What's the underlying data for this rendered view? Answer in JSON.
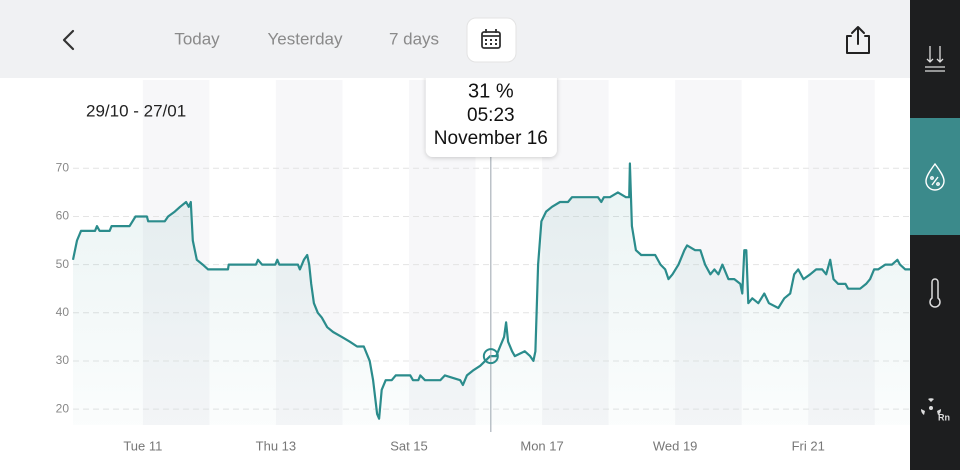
{
  "header": {
    "tabs": [
      "Today",
      "Yesterday",
      "7 days"
    ]
  },
  "range_label": "29/10 - 27/01",
  "sidebar": {
    "radon_label": "Rn"
  },
  "chart_data": {
    "type": "line",
    "color": "#2b8c8c",
    "grid": true,
    "xlim": [
      9.95,
      22.53
    ],
    "xticks": [
      {
        "value": 11,
        "label": "Tue 11"
      },
      {
        "value": 13,
        "label": "Thu 13"
      },
      {
        "value": 15,
        "label": "Sat 15"
      },
      {
        "value": 17,
        "label": "Mon 17"
      },
      {
        "value": 19,
        "label": "Wed 19"
      },
      {
        "value": 21,
        "label": "Fri 21"
      }
    ],
    "ylim": [
      16.7,
      73.8
    ],
    "yticks": [
      20,
      30,
      40,
      50,
      60,
      70
    ],
    "x": [
      9.95,
      10.01,
      10.07,
      10.28,
      10.31,
      10.35,
      10.5,
      10.53,
      10.8,
      10.89,
      11.06,
      11.08,
      11.33,
      11.38,
      11.48,
      11.56,
      11.65,
      11.69,
      11.72,
      11.75,
      11.81,
      11.9,
      11.98,
      12.28,
      12.29,
      12.7,
      12.73,
      12.79,
      12.99,
      13.02,
      13.05,
      13.33,
      13.36,
      13.42,
      13.47,
      13.5,
      13.53,
      13.57,
      13.63,
      13.69,
      13.77,
      13.86,
      13.99,
      14.11,
      14.22,
      14.32,
      14.41,
      14.46,
      14.52,
      14.55,
      14.59,
      14.65,
      14.74,
      14.8,
      15.02,
      15.06,
      15.14,
      15.17,
      15.24,
      15.47,
      15.54,
      15.77,
      15.81,
      15.87,
      15.96,
      16.07,
      16.22,
      16.31,
      16.37,
      16.43,
      16.46,
      16.49,
      16.55,
      16.59,
      16.74,
      16.82,
      16.87,
      16.9,
      16.94,
      16.99,
      17.06,
      17.15,
      17.27,
      17.39,
      17.45,
      17.84,
      17.89,
      17.93,
      18.02,
      18.14,
      18.26,
      18.31,
      18.32,
      18.35,
      18.41,
      18.49,
      18.7,
      18.78,
      18.85,
      18.9,
      18.96,
      19.05,
      19.14,
      19.18,
      19.3,
      19.38,
      19.45,
      19.53,
      19.59,
      19.65,
      19.71,
      19.8,
      19.89,
      19.98,
      20.01,
      20.04,
      20.07,
      20.1,
      20.16,
      20.25,
      20.34,
      20.41,
      20.55,
      20.64,
      20.73,
      20.79,
      20.85,
      20.93,
      21.03,
      21.12,
      21.21,
      21.27,
      21.33,
      21.38,
      21.45,
      21.56,
      21.6,
      21.78,
      21.87,
      21.93,
      21.99,
      22.05,
      22.16,
      22.26,
      22.34,
      22.38,
      22.46,
      22.53
    ],
    "values": [
      51,
      55,
      57,
      57,
      58,
      57,
      57,
      58,
      58,
      60,
      60,
      59,
      59,
      60,
      61,
      62,
      63,
      62,
      63,
      55,
      51,
      50,
      49,
      49,
      50,
      50,
      51,
      50,
      50,
      51,
      50,
      50,
      49,
      51,
      52,
      50,
      46,
      42,
      40,
      39,
      37,
      36,
      35,
      34,
      33,
      33,
      30,
      26,
      19,
      18,
      24,
      26,
      26,
      27,
      27,
      26,
      26,
      27,
      26,
      26,
      27,
      26,
      25,
      27,
      28,
      29,
      31,
      31,
      33,
      35,
      38,
      34,
      32,
      31,
      32,
      31,
      30,
      32,
      50,
      59,
      61,
      62,
      63,
      63,
      64,
      64,
      63,
      64,
      64,
      65,
      64,
      64,
      71,
      58,
      53,
      52,
      52,
      50,
      49,
      47,
      48,
      50,
      53,
      54,
      53,
      53,
      50,
      48,
      49,
      48,
      50,
      47,
      47,
      46,
      44,
      53,
      53,
      42,
      43,
      42,
      44,
      42,
      41,
      43,
      44,
      48,
      49,
      47,
      48,
      49,
      49,
      48,
      51,
      47,
      46,
      46,
      45,
      45,
      46,
      47,
      49,
      49,
      50,
      50,
      51,
      50,
      49,
      49
    ],
    "cursor": {
      "x": 16.23,
      "value": 31,
      "value_label": "31 %",
      "time": "05:23",
      "date": "November 16"
    }
  }
}
